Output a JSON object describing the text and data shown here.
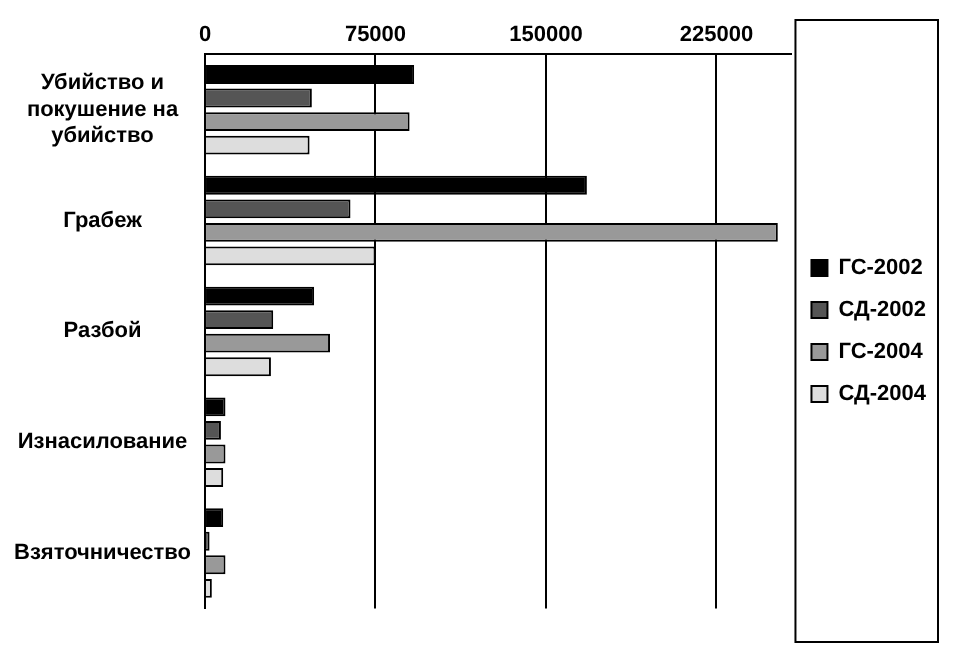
{
  "chart_data": {
    "type": "bar",
    "orientation": "horizontal",
    "categories": [
      "Убийство и покушение на убийство",
      "Грабеж",
      "Разбой",
      "Изнасилование",
      "Взяточничество"
    ],
    "series": [
      {
        "name": "ГС-2002",
        "color": "#000000",
        "values": [
          92000,
          168000,
          48000,
          9000,
          8000
        ]
      },
      {
        "name": "СД-2002",
        "color": "#555555",
        "values": [
          47000,
          64000,
          30000,
          7000,
          2000
        ]
      },
      {
        "name": "ГС-2004",
        "color": "#999999",
        "values": [
          90000,
          252000,
          55000,
          9000,
          9000
        ]
      },
      {
        "name": "СД-2004",
        "color": "#dddddd",
        "values": [
          46000,
          75000,
          29000,
          8000,
          3000
        ]
      }
    ],
    "xlim": [
      0,
      258000
    ],
    "xticks": [
      0,
      75000,
      150000,
      225000
    ],
    "grid": "x",
    "legend": "right"
  }
}
